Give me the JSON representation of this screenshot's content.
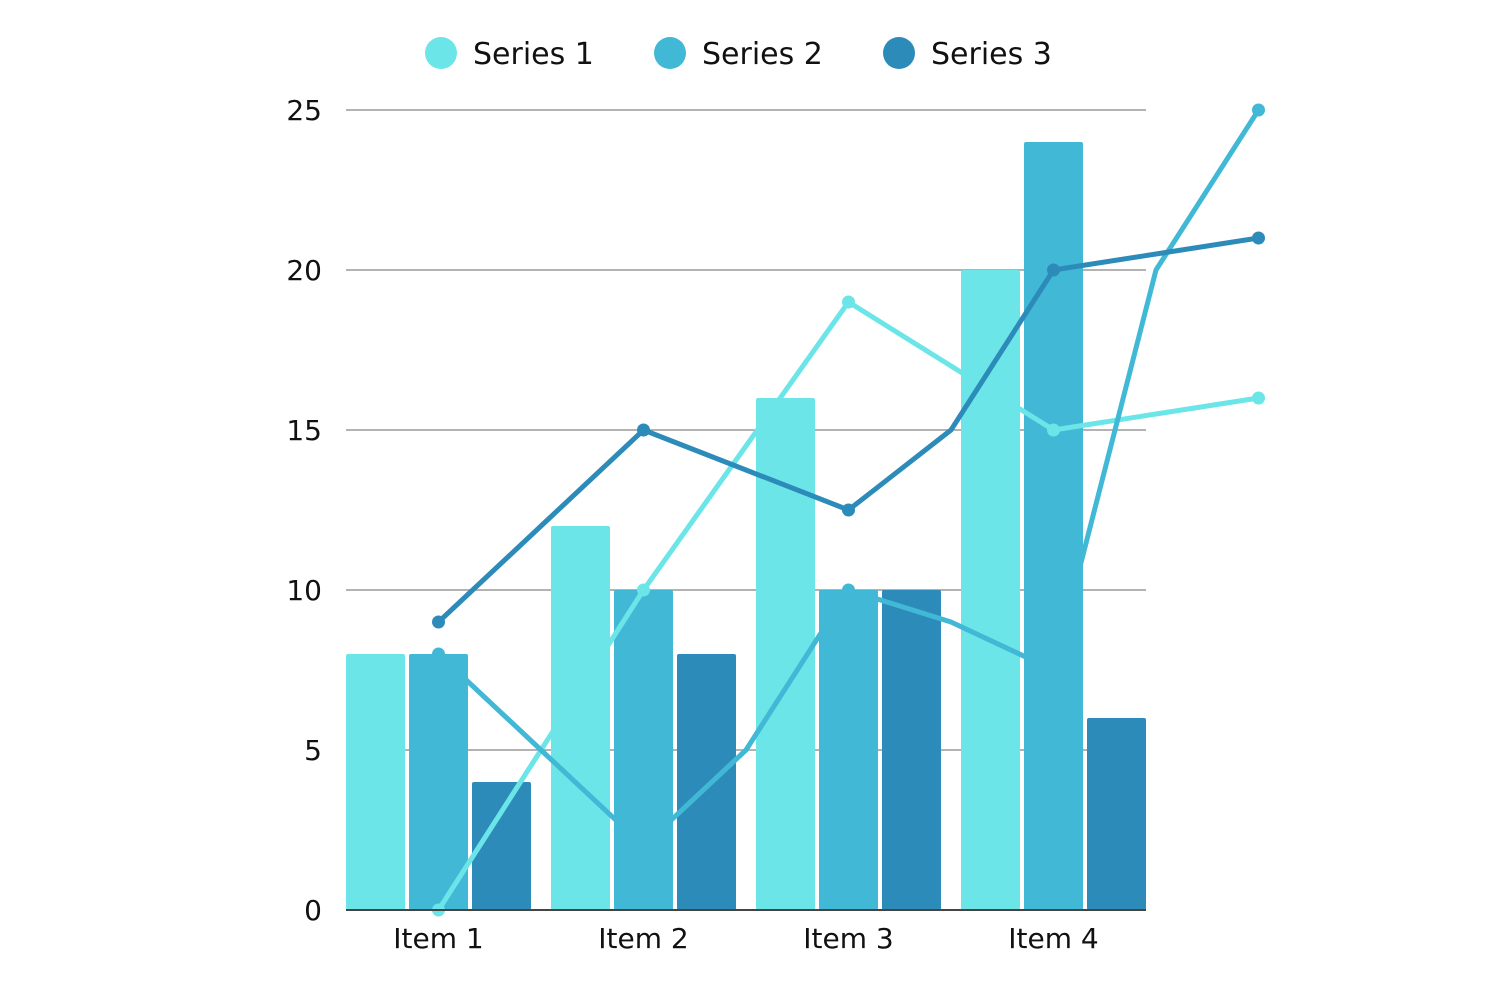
{
  "chart_data": {
    "type": "bar",
    "categories": [
      "Item 1",
      "Item 2",
      "Item 3",
      "Item 4"
    ],
    "ylim": [
      0,
      25
    ],
    "yticks": [
      0,
      5,
      10,
      15,
      20,
      25
    ],
    "grid": true,
    "legend_position": "top",
    "bar_series": [
      {
        "name": "Series 1",
        "color": "#6ce5e8",
        "values": [
          8,
          12,
          16,
          20
        ]
      },
      {
        "name": "Series 2",
        "color": "#41b8d5",
        "values": [
          8,
          10,
          10,
          24
        ]
      },
      {
        "name": "Series 3",
        "color": "#2d8bba",
        "values": [
          4,
          8,
          10,
          6
        ]
      }
    ],
    "line_series": [
      {
        "name": "Series 1",
        "color": "#6ce5e8",
        "x": [
          0.5,
          1.5,
          2.5,
          3.5,
          4.5,
          5.5,
          6.5,
          7.5,
          8.5
        ],
        "values": [
          0,
          5,
          10,
          14.5,
          19,
          17,
          15,
          15.5,
          16
        ]
      },
      {
        "name": "Series 2",
        "color": "#41b8d5",
        "x": [
          0.5,
          1.5,
          2.5,
          3.5,
          4.5,
          5.5,
          6.5,
          7.5,
          8.5
        ],
        "values": [
          8,
          5,
          2,
          5,
          10,
          9,
          7.5,
          20,
          25
        ]
      },
      {
        "name": "Series 3",
        "color": "#2d8bba",
        "x": [
          0.5,
          1.5,
          2.5,
          3.5,
          4.5,
          5.5,
          6.5,
          7.5,
          8.5
        ],
        "values": [
          9,
          12,
          15,
          13.75,
          12.5,
          15,
          20,
          20.5,
          21
        ]
      }
    ],
    "line_markers_at_index": [
      0,
      2,
      4,
      6,
      8
    ]
  }
}
